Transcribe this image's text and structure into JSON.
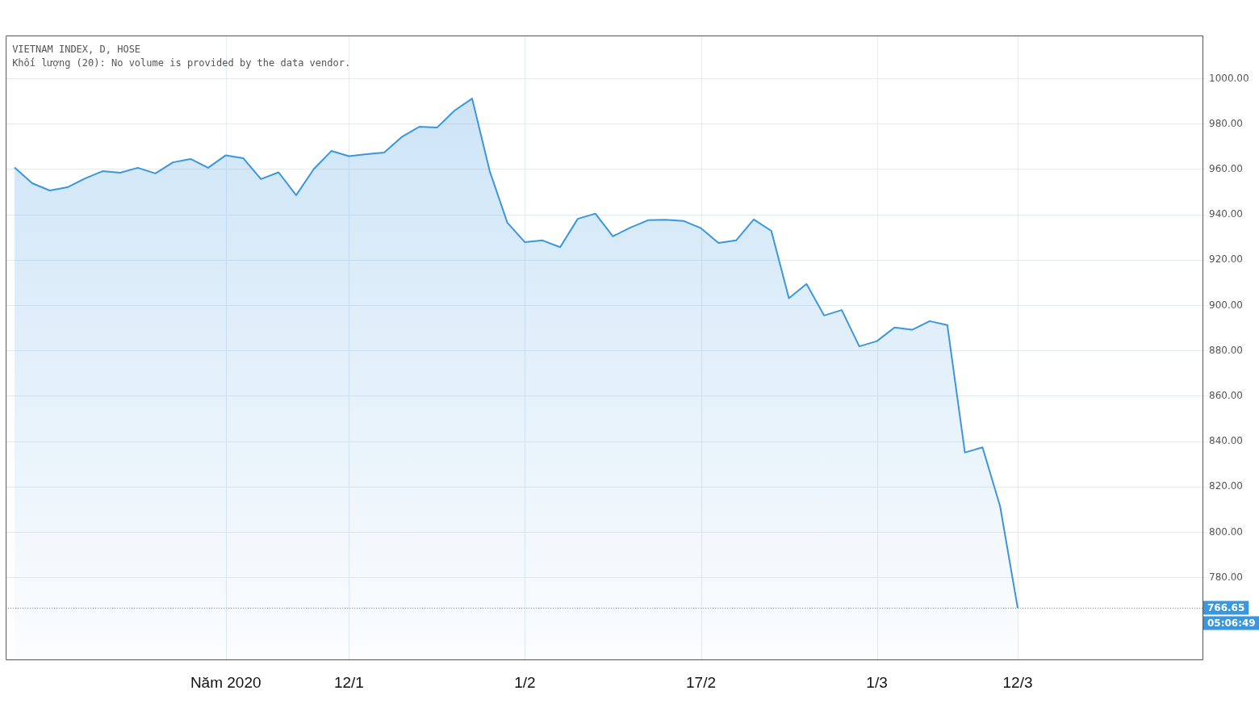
{
  "chart_data": {
    "type": "area",
    "title": "VIETNAM INDEX, D, HOSE",
    "subtitle": "Khối lượng (20): No volume is provided by the data vendor.",
    "categories": [
      null,
      null,
      null,
      null,
      null,
      null,
      null,
      null,
      null,
      null,
      null,
      null,
      "Năm 2020",
      null,
      null,
      null,
      null,
      null,
      null,
      "12/1",
      null,
      null,
      null,
      null,
      null,
      null,
      null,
      null,
      null,
      "1/2",
      null,
      null,
      null,
      null,
      null,
      null,
      null,
      null,
      null,
      "17/2",
      null,
      null,
      null,
      null,
      null,
      null,
      null,
      null,
      null,
      "1/3",
      null,
      null,
      null,
      null,
      null,
      null,
      null,
      "12/3",
      null,
      null,
      null,
      null,
      null,
      null,
      null,
      null,
      null,
      null
    ],
    "series": [
      {
        "color": "#3a96dd",
        "values": [
          960.8,
          953.9,
          950.7,
          952.1,
          956.0,
          959.2,
          958.5,
          960.7,
          958.2,
          963.1,
          964.6,
          960.7,
          966.2,
          964.9,
          955.7,
          958.7,
          948.6,
          960.1,
          968.1,
          965.8,
          966.7,
          967.4,
          974.3,
          978.8,
          978.4,
          985.9,
          991.2,
          959.2,
          936.5,
          927.9,
          928.7,
          925.7,
          938.2,
          940.5,
          930.5,
          934.4,
          937.6,
          937.8,
          937.3,
          934.1,
          927.6,
          928.7,
          937.9,
          932.9,
          903.2,
          909.5,
          895.6,
          898.0,
          882.0,
          884.3,
          890.3,
          889.3,
          893.1,
          891.4,
          835.2,
          837.5,
          811.5,
          766.65,
          null,
          null,
          null,
          null,
          null,
          null,
          null,
          null,
          null,
          null
        ]
      }
    ],
    "ylim": [
      744,
      1019
    ],
    "yticks": [
      {
        "value": 780,
        "label": "780.00"
      },
      {
        "value": 800,
        "label": "800.00"
      },
      {
        "value": 820,
        "label": "820.00"
      },
      {
        "value": 840,
        "label": "840.00"
      },
      {
        "value": 860,
        "label": "860.00"
      },
      {
        "value": 880,
        "label": "880.00"
      },
      {
        "value": 900,
        "label": "900.00"
      },
      {
        "value": 920,
        "label": "920.00"
      },
      {
        "value": 940,
        "label": "940.00"
      },
      {
        "value": 960,
        "label": "960.00"
      },
      {
        "value": 980,
        "label": "980.00"
      },
      {
        "value": 1000,
        "label": "1000.00"
      }
    ],
    "ref_lines": [
      {
        "axis": "y",
        "value": 766.65,
        "label": "766.65",
        "color": "#3a96dd",
        "line_style": "dotted"
      }
    ],
    "annotations": [
      "05:06:49"
    ],
    "grid": true,
    "legend": false,
    "marker": "none",
    "line_style": "solid"
  }
}
